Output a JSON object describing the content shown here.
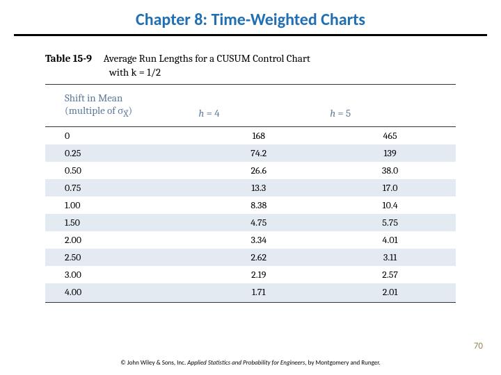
{
  "title": {
    "text": "Chapter 8: Time-Weighted Charts",
    "color": "#1f6fb2",
    "fontsize": 24,
    "rule_color": "#000000"
  },
  "table": {
    "caption_label": "Table 15-9",
    "caption_line1": "Average Run Lengths for a CUSUM Control Chart",
    "caption_line2": "with k = 1/2",
    "caption_fontsize": 15,
    "header1_line1": "Shift in Mean",
    "header1_line2": "(multiple of σ",
    "header1_sub": "X̄",
    "header1_tail": ")",
    "header2": "h = 4",
    "header3": "h = 5",
    "header_color": "#5b7a99",
    "header_fontsize": 15,
    "body_fontsize": 14,
    "stripe_color": "#e4eaf2",
    "rows": [
      {
        "shift": "0",
        "h4": "168",
        "h5": "465"
      },
      {
        "shift": "0.25",
        "h4": "74.2",
        "h5": "139"
      },
      {
        "shift": "0.50",
        "h4": "26.6",
        "h5": "38.0"
      },
      {
        "shift": "0.75",
        "h4": "13.3",
        "h5": "17.0"
      },
      {
        "shift": "1.00",
        "h4": "8.38",
        "h5": "10.4"
      },
      {
        "shift": "1.50",
        "h4": "4.75",
        "h5": "5.75"
      },
      {
        "shift": "2.00",
        "h4": "3.34",
        "h5": "4.01"
      },
      {
        "shift": "2.50",
        "h4": "2.62",
        "h5": "3.11"
      },
      {
        "shift": "3.00",
        "h4": "2.19",
        "h5": "2.57"
      },
      {
        "shift": "4.00",
        "h4": "1.71",
        "h5": "2.01"
      }
    ]
  },
  "page_number": "70",
  "page_number_color": "#9a8256",
  "page_number_fontsize": 13,
  "footer": {
    "prefix": "© John Wiley & Sons, Inc. ",
    "book": "Applied Statistics and Probability for Engineers",
    "suffix": ", by Montgomery and Runger.",
    "fontsize": 9,
    "color": "#000000"
  }
}
